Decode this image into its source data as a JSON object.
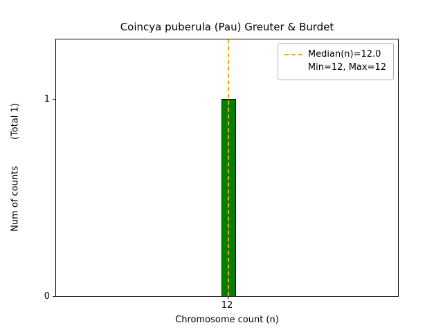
{
  "chart_data": {
    "type": "bar",
    "title": "Coincya puberula (Pau) Greuter & Burdet",
    "xlabel": "Chromosome count (n)",
    "ylabel": "Num of counts",
    "ylabel_secondary": "(Total 1)",
    "x": [
      12
    ],
    "values": [
      1
    ],
    "xticks": [
      "12"
    ],
    "yticks": [
      "0",
      "1"
    ],
    "ylim": [
      0,
      1.3
    ],
    "bar_color": "#008000",
    "bar_edge_color": "#000000",
    "median_line": {
      "value": 12.0,
      "color": "#FFA500",
      "style": "dashed"
    },
    "legend": {
      "position": "upper right",
      "entries": [
        "Median(n)=12.0",
        "Min=12, Max=12"
      ]
    },
    "grid": false
  }
}
